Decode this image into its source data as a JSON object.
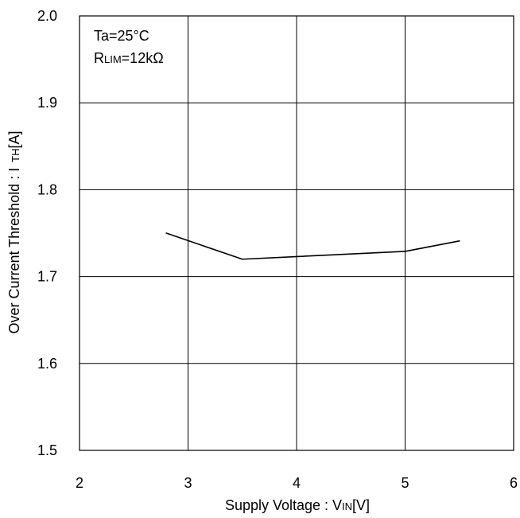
{
  "chart_data": {
    "type": "line",
    "x": [
      2.8,
      3.5,
      5.0,
      5.5
    ],
    "series": [
      {
        "values": [
          1.75,
          1.72,
          1.729,
          1.741
        ]
      }
    ],
    "xlabel_parts": {
      "before": "Supply Voltage : V",
      "sub": "IN",
      "after": "[V]"
    },
    "ylabel_parts": {
      "before": "Over Current Threshold : I",
      "sub": "TH",
      "after": "[A]"
    },
    "xlim": [
      2,
      6
    ],
    "ylim": [
      1.5,
      2.0
    ],
    "x_ticks": [
      "2",
      "3",
      "4",
      "5",
      "6"
    ],
    "y_ticks": [
      "1.5",
      "1.6",
      "1.7",
      "1.8",
      "1.9",
      "2.0"
    ],
    "grid": true,
    "line_color": "#000000",
    "annotations": {
      "ta": "Ta=25°C",
      "rlim_prefix": "R",
      "rlim_sub": "LIM",
      "rlim_suffix": "=12kΩ"
    }
  }
}
